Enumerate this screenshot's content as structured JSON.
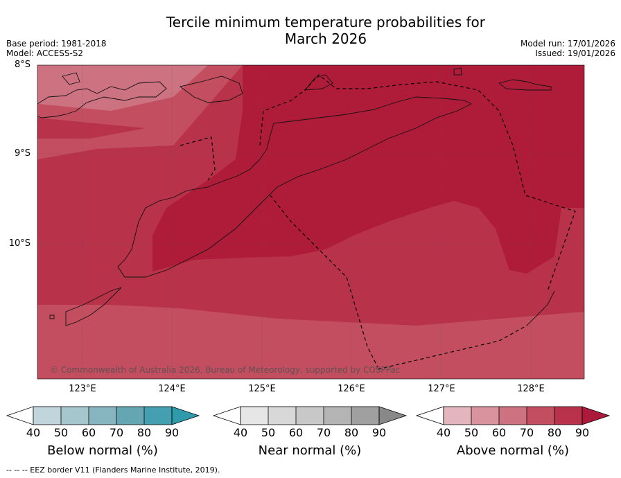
{
  "title_line1": "Tercile minimum temperature probabilities for",
  "title_line2": "March 2026",
  "meta": {
    "base_period": "Base period: 1981-2018",
    "model": "Model: ACCESS-S2",
    "model_run": "Model run: 17/01/2026",
    "issued": "Issued: 19/01/2026"
  },
  "lat_labels": [
    "8°S",
    "9°S",
    "10°S"
  ],
  "lon_labels": [
    "123°E",
    "124°E",
    "125°E",
    "126°E",
    "127°E",
    "128°E"
  ],
  "copyright": "© Commonwealth of Australia 2026, Bureau of Meteorology, supported by COSPPac",
  "colorbars": [
    {
      "label": "Below normal (%)",
      "ticks": [
        "40",
        "50",
        "60",
        "70",
        "80",
        "90"
      ],
      "colors": [
        "#c0d6dc",
        "#a6c6cd",
        "#87b5bf",
        "#66a6b3",
        "#44a0b0",
        "#2f9aaa"
      ]
    },
    {
      "label": "Near normal (%)",
      "ticks": [
        "40",
        "50",
        "60",
        "70",
        "80",
        "90"
      ],
      "colors": [
        "#e6e6e6",
        "#d8d8d8",
        "#c8c8c8",
        "#b4b4b4",
        "#a0a0a0",
        "#888888"
      ]
    },
    {
      "label": "Above normal (%)",
      "ticks": [
        "40",
        "50",
        "60",
        "70",
        "80",
        "90"
      ],
      "colors": [
        "#e3b6be",
        "#d9939f",
        "#cd7280",
        "#c34e5f",
        "#b83249",
        "#ab1a3a"
      ]
    }
  ],
  "colors": {
    "above_60_70": "#cd7280",
    "above_70_80": "#c34e5f",
    "above_80_90": "#b83249",
    "above_90": "#af1c3a"
  },
  "footnote": "--  --  -- EEZ border V11 (Flanders Marine Institute, 2019)."
}
